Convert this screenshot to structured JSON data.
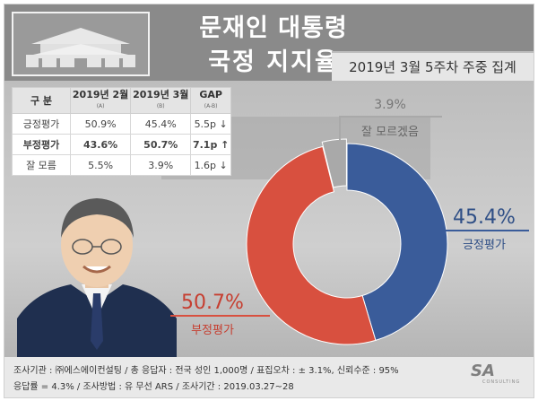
{
  "header": {
    "title_line1": "문재인 대통령",
    "title_line2": "국정 지지율",
    "survey_date": "2019년 3월 5주차 주중 집계"
  },
  "table": {
    "columns": [
      {
        "label": "구 분",
        "sub": ""
      },
      {
        "label": "2019년 2월",
        "sub": "(A)"
      },
      {
        "label": "2019년 3월",
        "sub": "(B)"
      },
      {
        "label": "GAP",
        "sub": "(A-B)"
      }
    ],
    "rows": [
      {
        "label": "긍정평가",
        "feb": "50.9%",
        "mar": "45.4%",
        "gap": "5.5p ↓"
      },
      {
        "label": "부정평가",
        "feb": "43.6%",
        "mar": "50.7%",
        "gap": "7.1p ↑"
      },
      {
        "label": "잘 모름",
        "feb": "5.5%",
        "mar": "3.9%",
        "gap": "1.6p ↓"
      }
    ]
  },
  "chart_data": {
    "type": "pie",
    "donut": true,
    "slices": [
      {
        "label": "긍정평가",
        "value": 45.4,
        "display": "45.4%",
        "color": "#3a5c9a"
      },
      {
        "label": "부정평가",
        "value": 50.7,
        "display": "50.7%",
        "color": "#d8503f"
      },
      {
        "label": "잘 모르겠음",
        "value": 3.9,
        "display": "3.9%",
        "color": "#a9a9a9"
      }
    ]
  },
  "footer": {
    "line1": "조사기관 : ㈜에스에이컨설팅 / 총 응답자 : 전국 성인 1,000명 / 표집오차 : ± 3.1%, 신뢰수준 : 95%",
    "line2": "응답률 = 4.3% / 조사방법 : 유 무선 ARS / 조사기간 : 2019.03.27~28",
    "logo_text": "SA",
    "logo_sub": "CONSULTING"
  }
}
